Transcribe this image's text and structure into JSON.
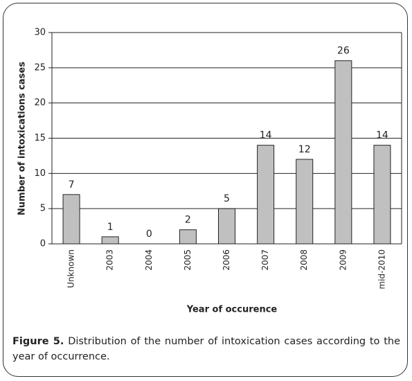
{
  "chart_data": {
    "type": "bar",
    "categories": [
      "Unknown",
      "2003",
      "2004",
      "2005",
      "2006",
      "2007",
      "2008",
      "2009",
      "mid-2010"
    ],
    "values": [
      7,
      1,
      0,
      2,
      5,
      14,
      12,
      26,
      14
    ],
    "color": "#c0c0c0",
    "ylim": [
      0,
      30
    ],
    "yticks": [
      0,
      5,
      10,
      15,
      20,
      25,
      30
    ],
    "grid": true,
    "x_label": "Year of occurence",
    "y_label": "Number of intoxications cases"
  },
  "caption": {
    "label": "Figure 5.",
    "text": "Distribution of the number of intoxication cases according to the year of occurrence."
  }
}
